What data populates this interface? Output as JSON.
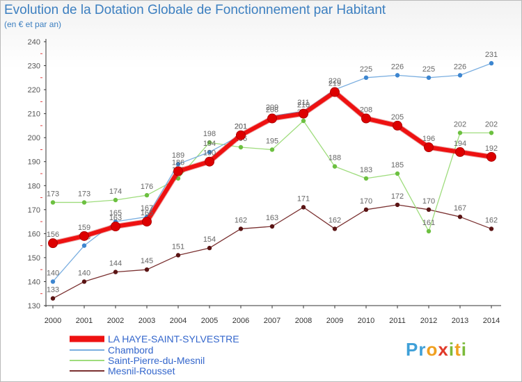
{
  "header": {
    "title": "Evolution de la Dotation Globale de Fonctionnement par Habitant",
    "subtitle": "(en € et par an)"
  },
  "brand": {
    "text": "Proxiti"
  },
  "chart_data": {
    "type": "line",
    "title": "Evolution de la Dotation Globale de Fonctionnement par Habitant",
    "subtitle": "(en € et par an)",
    "xlabel": "",
    "ylabel": "",
    "ylim": [
      130,
      240
    ],
    "y_ticks": [
      130,
      140,
      150,
      160,
      170,
      180,
      190,
      200,
      210,
      220,
      230,
      240
    ],
    "categories": [
      "2000",
      "2001",
      "2002",
      "2003",
      "2004",
      "2005",
      "2006",
      "2007",
      "2008",
      "2009",
      "2010",
      "2011",
      "2012",
      "2013",
      "2014"
    ],
    "legend_position": "bottom-left",
    "grid": false,
    "series": [
      {
        "name": "Mesnil-Rousset",
        "color": "#6b1e1e",
        "values": [
          133,
          140,
          144,
          145,
          151,
          154,
          162,
          163,
          171,
          162,
          170,
          172,
          170,
          167,
          162
        ]
      },
      {
        "name": "Saint-Pierre-du-Mesnil",
        "color": "#8ed46a",
        "values": [
          173,
          173,
          174,
          176,
          183,
          198,
          196,
          195,
          207,
          188,
          183,
          185,
          161,
          202,
          202
        ]
      },
      {
        "name": "Chambord",
        "color": "#6aa5dc",
        "values": [
          140,
          155,
          165,
          167,
          189,
          194,
          201,
          209,
          211,
          220,
          225,
          226,
          225,
          226,
          231
        ]
      },
      {
        "name": "LA HAYE-SAINT-SYLVESTRE",
        "color": "#ee1111",
        "values": [
          156,
          159,
          163,
          165,
          186,
          190,
          201,
          208,
          210,
          219,
          208,
          205,
          196,
          194,
          192
        ]
      }
    ],
    "legend": [
      "LA HAYE-SAINT-SYLVESTRE",
      "Chambord",
      "Saint-Pierre-du-Mesnil",
      "Mesnil-Rousset"
    ]
  }
}
